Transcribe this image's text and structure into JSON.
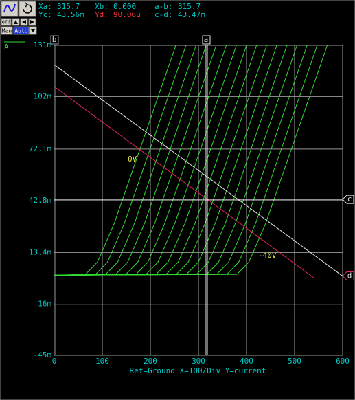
{
  "chart_data": {
    "type": "line",
    "readouts": [
      {
        "label": "Xa:",
        "value": 315.7
      },
      {
        "label": "Xb:",
        "value": {
          "value": 0,
          "label": "0.000"
        }
      },
      {
        "label": "a-b:",
        "value": 315.7
      },
      {
        "label": "Yc:",
        "value": {
          "value": 0.04356,
          "label": "43.56m"
        }
      },
      {
        "label": "Yd:",
        "value": {
          "value": 9.006e-05,
          "label": "90.06u"
        }
      },
      {
        "label": "c-d:",
        "value": {
          "value": 0.04347,
          "label": "43.47m"
        }
      }
    ],
    "cursor_names": {
      "a": "a",
      "b": "b",
      "c": "c",
      "d": "d"
    },
    "toolbar": {
      "off": "Off",
      "man": "Man",
      "auto": "Auto"
    },
    "legend": "A",
    "x_label": "Ref=Ground  X=100/Div Y=current",
    "annotations": [
      "0V",
      "-40V"
    ],
    "xlim": [
      0,
      600
    ],
    "xticks": [
      0,
      100,
      200,
      300,
      400,
      500,
      600
    ],
    "ylim": [
      -0.045,
      0.131
    ],
    "yticks": [
      {
        "value": 0.131,
        "label": "131m"
      },
      {
        "value": 0.102,
        "label": "102m"
      },
      {
        "value": 0.0721,
        "label": "72.1m"
      },
      {
        "value": 0.0428,
        "label": "42.8m"
      },
      {
        "value": 0.0134,
        "label": "13.4m"
      },
      {
        "value": -0.016,
        "label": "-16m"
      },
      {
        "value": -0.045,
        "label": "-45m"
      }
    ],
    "grid": true,
    "series": [
      {
        "color": "#33dd33",
        "x": [
          0,
          65,
          90,
          125,
          253
        ],
        "values": [
          0.0005,
          0.001,
          0.008,
          0.03,
          0.131
        ]
      },
      {
        "color": "#33dd33",
        "x": [
          0,
          86,
          111,
          146,
          274
        ],
        "values": [
          0.0005,
          0.001,
          0.008,
          0.03,
          0.131
        ]
      },
      {
        "color": "#33dd33",
        "x": [
          0,
          107,
          132,
          167,
          295
        ],
        "values": [
          0.0005,
          0.001,
          0.008,
          0.03,
          0.131
        ]
      },
      {
        "color": "#33dd33",
        "x": [
          0,
          128,
          153,
          188,
          316
        ],
        "values": [
          0.0005,
          0.001,
          0.008,
          0.03,
          0.131
        ]
      },
      {
        "color": "#33dd33",
        "x": [
          0,
          149,
          174,
          209,
          337
        ],
        "values": [
          0.0005,
          0.001,
          0.008,
          0.03,
          0.131
        ]
      },
      {
        "color": "#33dd33",
        "x": [
          0,
          170,
          195,
          230,
          358
        ],
        "values": [
          0.0005,
          0.001,
          0.008,
          0.03,
          0.131
        ]
      },
      {
        "color": "#33dd33",
        "x": [
          0,
          191,
          216,
          251,
          379
        ],
        "values": [
          0.0005,
          0.001,
          0.008,
          0.03,
          0.131
        ]
      },
      {
        "color": "#33dd33",
        "x": [
          0,
          212,
          237,
          272,
          400
        ],
        "values": [
          0.0005,
          0.001,
          0.008,
          0.03,
          0.131
        ]
      },
      {
        "color": "#33dd33",
        "x": [
          0,
          233,
          258,
          293,
          421
        ],
        "values": [
          0.0005,
          0.001,
          0.008,
          0.03,
          0.131
        ]
      },
      {
        "color": "#33dd33",
        "x": [
          0,
          254,
          279,
          314,
          442
        ],
        "values": [
          0.0005,
          0.001,
          0.008,
          0.03,
          0.131
        ]
      },
      {
        "color": "#33dd33",
        "x": [
          0,
          275,
          300,
          335,
          463
        ],
        "values": [
          0.0005,
          0.001,
          0.008,
          0.03,
          0.131
        ]
      },
      {
        "color": "#33dd33",
        "x": [
          0,
          296,
          321,
          356,
          484
        ],
        "values": [
          0.0005,
          0.001,
          0.008,
          0.03,
          0.131
        ]
      },
      {
        "color": "#33dd33",
        "x": [
          0,
          317,
          342,
          377,
          505
        ],
        "values": [
          0.0005,
          0.001,
          0.008,
          0.03,
          0.131
        ]
      },
      {
        "color": "#33dd33",
        "x": [
          0,
          338,
          363,
          398,
          526
        ],
        "values": [
          0.0005,
          0.001,
          0.008,
          0.03,
          0.131
        ]
      },
      {
        "color": "#33dd33",
        "x": [
          0,
          359,
          384,
          419,
          547
        ],
        "values": [
          0.0005,
          0.001,
          0.008,
          0.03,
          0.131
        ]
      },
      {
        "color": "#33dd33",
        "x": [
          0,
          380,
          405,
          440,
          568
        ],
        "values": [
          0.0005,
          0.001,
          0.008,
          0.03,
          0.131
        ]
      },
      {
        "color": "#e8e8e8",
        "x": [
          0,
          600
        ],
        "values": [
          0.12,
          0
        ]
      },
      {
        "color": "#e8245a",
        "x": [
          0,
          540
        ],
        "values": [
          0.1076,
          -0.001
        ]
      }
    ]
  }
}
